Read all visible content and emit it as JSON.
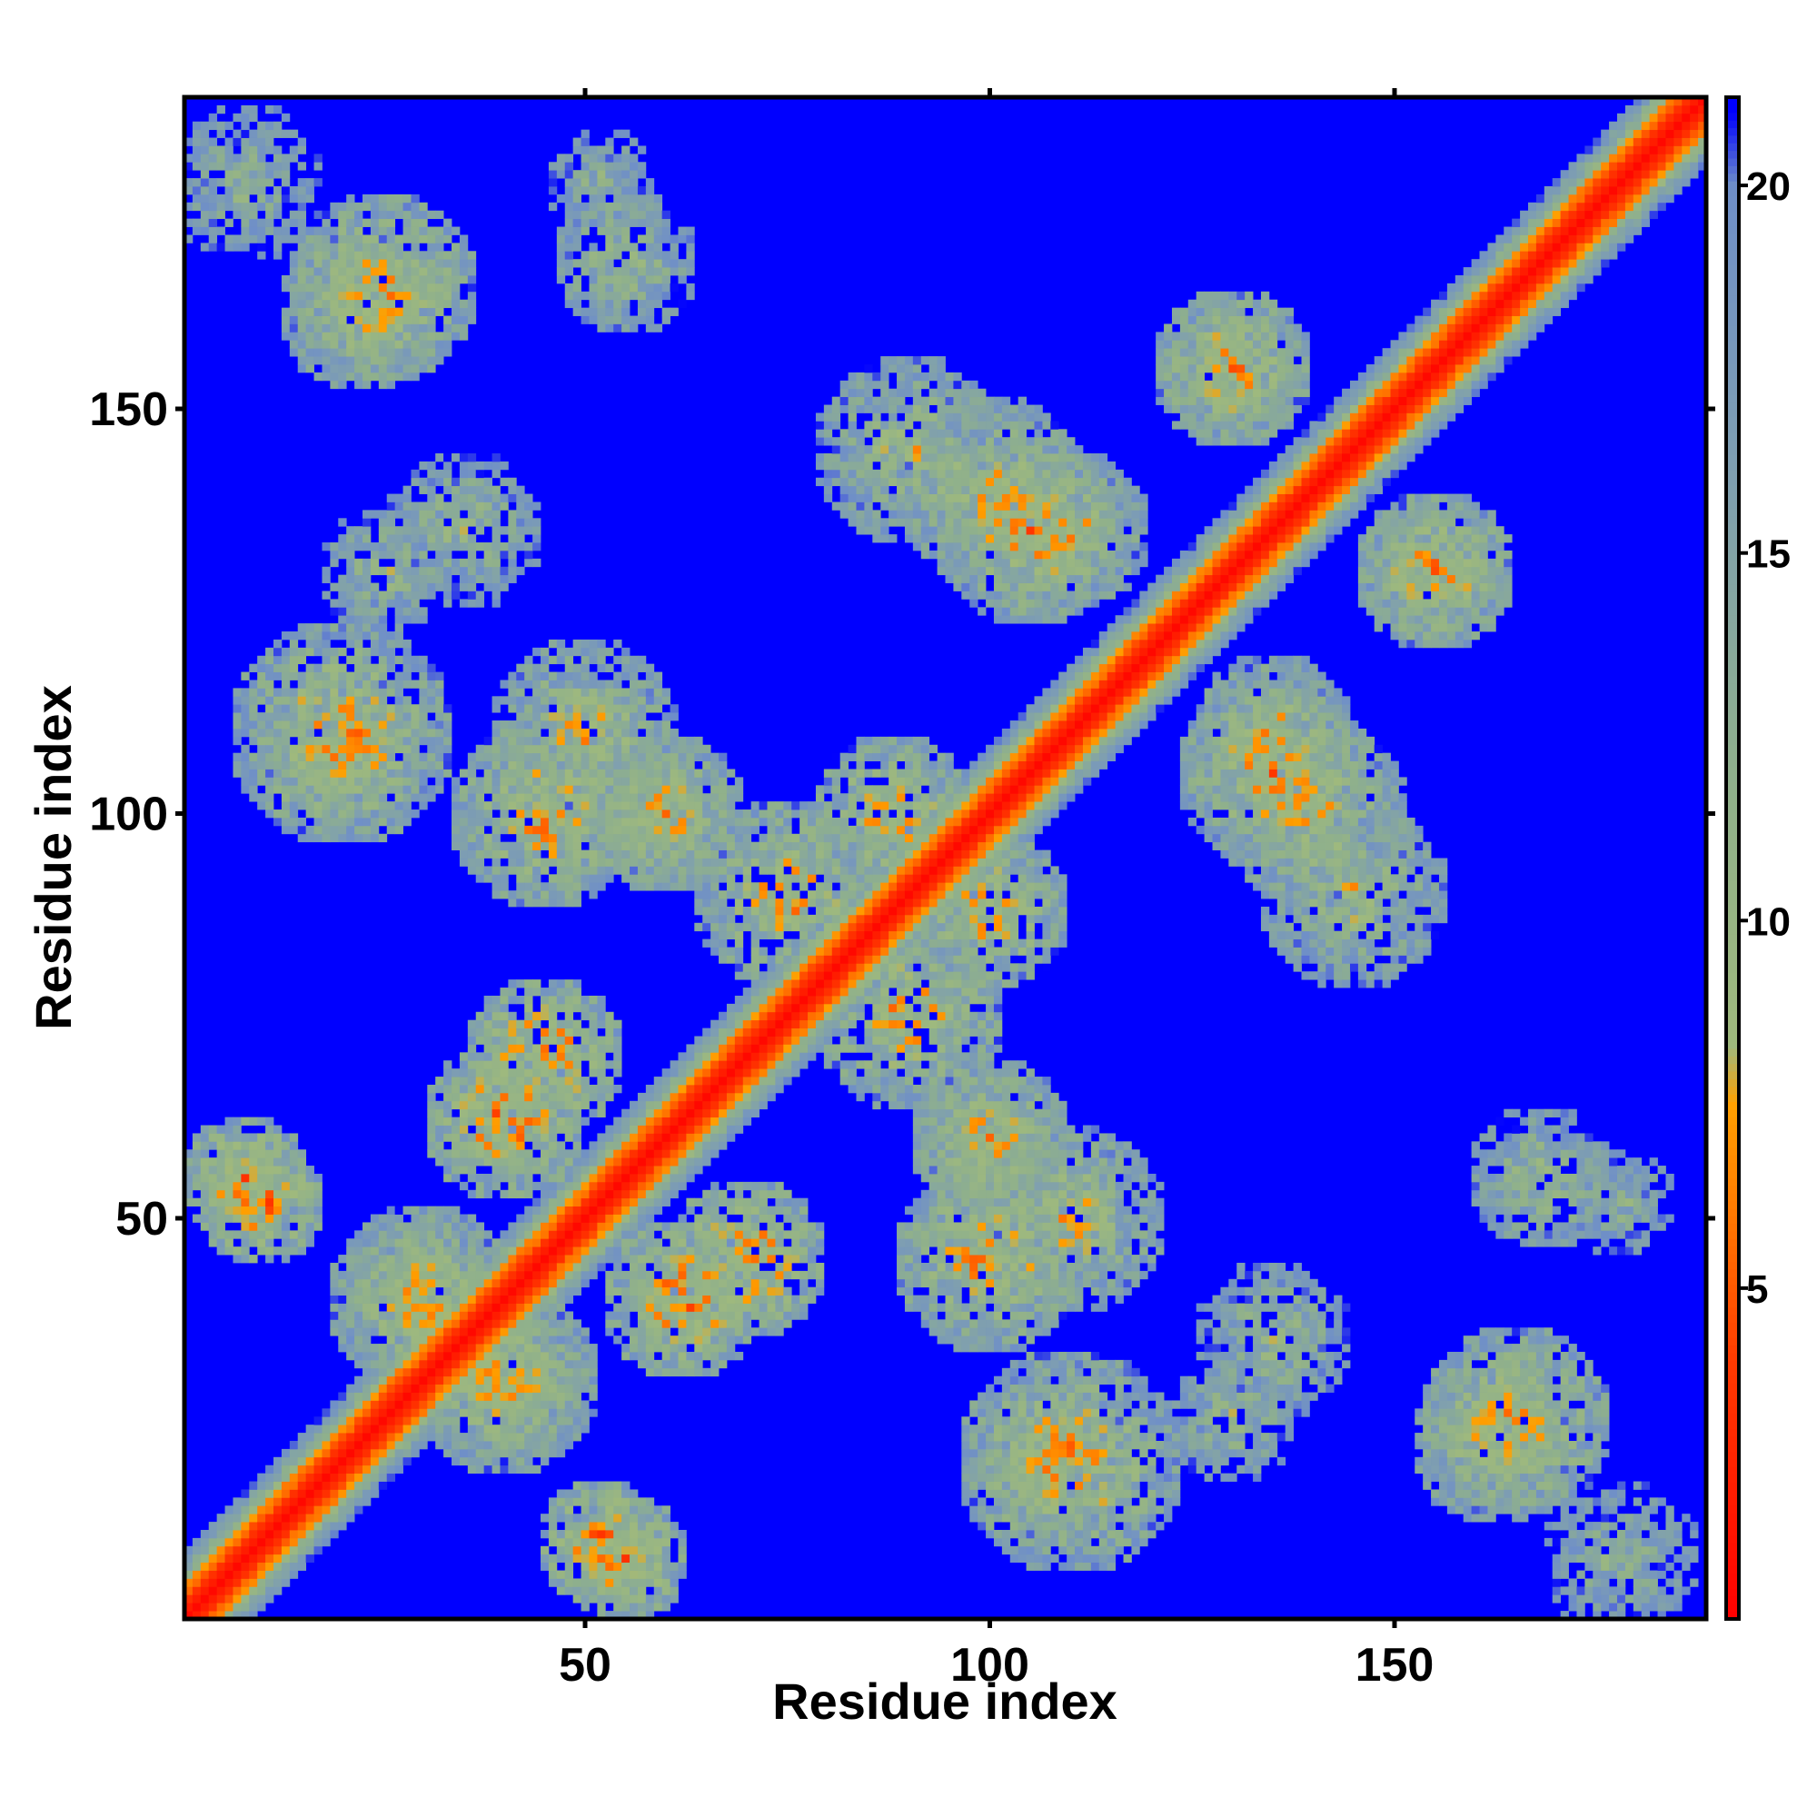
{
  "chart_data": {
    "type": "heatmap",
    "title": "",
    "xlabel": "Residue index",
    "ylabel": "Residue index",
    "n_residues": 188,
    "xlim": [
      1,
      188
    ],
    "ylim": [
      1,
      188
    ],
    "x_ticks": [
      50,
      100,
      150
    ],
    "y_ticks": [
      50,
      100,
      150
    ],
    "x_tick_labels": [
      "50",
      "100",
      "150"
    ],
    "y_tick_labels": [
      "50",
      "100",
      "150"
    ],
    "value_description": "Pairwise residue distance map; values of 21 and above shown as background",
    "colorbar": {
      "range": [
        0.5,
        21.2
      ],
      "ticks": [
        5,
        10,
        15,
        20
      ],
      "tick_labels": [
        "5",
        "10",
        "15",
        "20"
      ],
      "colors": [
        {
          "value": 0.5,
          "color": "#ff0000"
        },
        {
          "value": 4.0,
          "color": "#ff3a00"
        },
        {
          "value": 6.0,
          "color": "#ff7800"
        },
        {
          "value": 7.5,
          "color": "#ffa000"
        },
        {
          "value": 8.3,
          "color": "#9fb97d"
        },
        {
          "value": 12.0,
          "color": "#8fb08c"
        },
        {
          "value": 16.0,
          "color": "#7f9fb0"
        },
        {
          "value": 20.0,
          "color": "#6f8fc8"
        },
        {
          "value": 21.0,
          "color": "#0000ff"
        }
      ],
      "background_color": "#0000ff"
    },
    "contact_patches": [
      {
        "center": [
          8,
          178
        ],
        "radius": 10,
        "min_distance": 12
      },
      {
        "center": [
          22,
          162
        ],
        "radius": 10,
        "min_distance": 9
      },
      {
        "center": [
          52,
          178
        ],
        "radius": 7,
        "min_distance": 12
      },
      {
        "center": [
          25,
          130
        ],
        "radius": 8,
        "min_distance": 11
      },
      {
        "center": [
          20,
          108
        ],
        "radius": 10,
        "min_distance": 9
      },
      {
        "center": [
          45,
          100
        ],
        "radius": 12,
        "min_distance": 8
      },
      {
        "center": [
          45,
          70
        ],
        "radius": 10,
        "min_distance": 7
      },
      {
        "center": [
          8,
          55
        ],
        "radius": 8,
        "min_distance": 7
      },
      {
        "center": [
          52,
          10
        ],
        "radius": 8,
        "min_distance": 7
      },
      {
        "center": [
          62,
          40
        ],
        "radius": 10,
        "min_distance": 7
      },
      {
        "center": [
          75,
          90
        ],
        "radius": 12,
        "min_distance": 8
      },
      {
        "center": [
          90,
          145
        ],
        "radius": 12,
        "min_distance": 10
      },
      {
        "center": [
          105,
          135
        ],
        "radius": 12,
        "min_distance": 8
      },
      {
        "center": [
          110,
          50
        ],
        "radius": 12,
        "min_distance": 9
      },
      {
        "center": [
          110,
          20
        ],
        "radius": 14,
        "min_distance": 8
      },
      {
        "center": [
          135,
          35
        ],
        "radius": 10,
        "min_distance": 11
      },
      {
        "center": [
          165,
          25
        ],
        "radius": 12,
        "min_distance": 8
      },
      {
        "center": [
          168,
          55
        ],
        "radius": 9,
        "min_distance": 10
      },
      {
        "center": [
          140,
          100
        ],
        "radius": 12,
        "min_distance": 9
      },
      {
        "center": [
          155,
          130
        ],
        "radius": 10,
        "min_distance": 9
      },
      {
        "center": [
          130,
          155
        ],
        "radius": 10,
        "min_distance": 8
      },
      {
        "center": [
          100,
          60
        ],
        "radius": 10,
        "min_distance": 9
      },
      {
        "center": [
          60,
          100
        ],
        "radius": 10,
        "min_distance": 9
      },
      {
        "center": [
          100,
          88
        ],
        "radius": 10,
        "min_distance": 8
      },
      {
        "center": [
          135,
          110
        ],
        "radius": 10,
        "min_distance": 9
      },
      {
        "center": [
          40,
          30
        ],
        "radius": 12,
        "min_distance": 9
      },
      {
        "center": [
          30,
          40
        ],
        "radius": 12,
        "min_distance": 9
      }
    ]
  }
}
